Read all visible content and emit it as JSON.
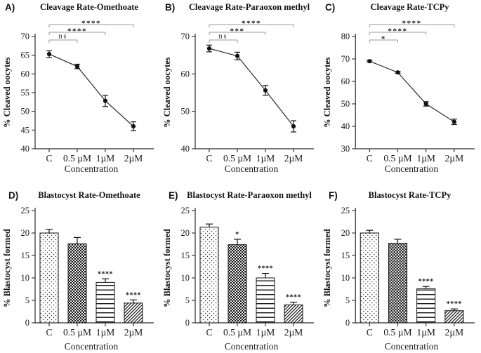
{
  "figure": {
    "background": "#ffffff",
    "axis_color": "#2b2b2b",
    "text_color": "#1a1a1a",
    "bracket_color": "#9a9a9a",
    "marker_color": "#111111"
  },
  "charts": [
    {
      "letter": "A)",
      "title": "Cleavage Rate-Omethoate",
      "type": "line",
      "ylabel": "% Cleaved oocytes",
      "xlabel": "Concentration",
      "categories": [
        "C",
        "0.5 µM",
        "1µM",
        "2µM"
      ],
      "values": [
        65.3,
        62.0,
        52.8,
        46.0
      ],
      "errors": [
        0.9,
        0.6,
        1.5,
        1.2
      ],
      "ylim": [
        40,
        70
      ],
      "yticks": [
        40,
        45,
        50,
        55,
        60,
        65,
        70
      ],
      "comparisons": [
        {
          "from": 0,
          "to": 1,
          "label": "ns"
        },
        {
          "from": 0,
          "to": 2,
          "label": "****"
        },
        {
          "from": 0,
          "to": 3,
          "label": "****"
        }
      ]
    },
    {
      "letter": "B)",
      "title": "Cleavage Rate-Paraoxon methyl",
      "type": "line",
      "ylabel": "% Cleaved oocytes",
      "xlabel": "Concentration",
      "categories": [
        "C",
        "0.5 µM",
        "1µM",
        "2µM"
      ],
      "values": [
        66.8,
        64.8,
        55.6,
        46.0
      ],
      "errors": [
        0.9,
        1.0,
        1.3,
        1.5
      ],
      "ylim": [
        40,
        70
      ],
      "yticks": [
        40,
        50,
        60,
        70
      ],
      "comparisons": [
        {
          "from": 0,
          "to": 1,
          "label": "ns"
        },
        {
          "from": 0,
          "to": 2,
          "label": "***"
        },
        {
          "from": 0,
          "to": 3,
          "label": "****"
        }
      ]
    },
    {
      "letter": "C)",
      "title": "Cleavage Rate-TCPy",
      "type": "line",
      "ylabel": "% Cleaved oocytes",
      "xlabel": "Concentration",
      "categories": [
        "C",
        "0.5 µM",
        "1µM",
        "2µM"
      ],
      "values": [
        69.0,
        64.0,
        50.0,
        42.0
      ],
      "errors": [
        0.4,
        0.4,
        1.0,
        1.2
      ],
      "ylim": [
        30,
        80
      ],
      "yticks": [
        30,
        40,
        50,
        60,
        70,
        80
      ],
      "comparisons": [
        {
          "from": 0,
          "to": 1,
          "label": "*"
        },
        {
          "from": 0,
          "to": 2,
          "label": "****"
        },
        {
          "from": 0,
          "to": 3,
          "label": "****"
        }
      ]
    },
    {
      "letter": "D)",
      "title": "Blastocyst Rate-Omethoate",
      "type": "bar",
      "ylabel": "% Blastocyst formed",
      "xlabel": "Concentration",
      "categories": [
        "C",
        "0.5 µM",
        "1µM",
        "2µM"
      ],
      "values": [
        20.0,
        17.6,
        9.0,
        4.4
      ],
      "errors": [
        0.8,
        1.4,
        0.8,
        0.7
      ],
      "ylim": [
        0,
        25
      ],
      "yticks": [
        0,
        5,
        10,
        15,
        20,
        25
      ],
      "patterns": [
        "dots-sparse",
        "dots-dense",
        "horizontal-lines",
        "diagonal-lines"
      ],
      "annotations": [
        {
          "index": 2,
          "label": "****"
        },
        {
          "index": 3,
          "label": "****"
        }
      ]
    },
    {
      "letter": "E)",
      "title": "Blastocyst Rate-Paraoxon methyl",
      "type": "bar",
      "ylabel": "% Blastocyst formed",
      "xlabel": "Concentration",
      "categories": [
        "C",
        "0.5 µM",
        "1µM",
        "2µM"
      ],
      "values": [
        21.3,
        17.4,
        10.0,
        4.0
      ],
      "errors": [
        0.7,
        1.2,
        1.0,
        0.6
      ],
      "ylim": [
        0,
        25
      ],
      "yticks": [
        0,
        5,
        10,
        15,
        20,
        25
      ],
      "patterns": [
        "dots-sparse",
        "dots-dense",
        "horizontal-lines",
        "diagonal-lines"
      ],
      "annotations": [
        {
          "index": 1,
          "label": "*"
        },
        {
          "index": 2,
          "label": "****"
        },
        {
          "index": 3,
          "label": "****"
        }
      ]
    },
    {
      "letter": "F)",
      "title": "Blastocyst Rate-TCPy",
      "type": "bar",
      "ylabel": "% Blastocyst formed",
      "xlabel": "Concentration",
      "categories": [
        "C",
        "0.5 µM",
        "1µM",
        "2µM"
      ],
      "values": [
        20.0,
        17.7,
        7.6,
        2.7
      ],
      "errors": [
        0.6,
        0.9,
        0.5,
        0.4
      ],
      "ylim": [
        0,
        25
      ],
      "yticks": [
        0,
        5,
        10,
        15,
        20,
        25
      ],
      "patterns": [
        "dots-sparse",
        "dots-dense",
        "horizontal-lines",
        "diagonal-lines"
      ],
      "annotations": [
        {
          "index": 2,
          "label": "****"
        },
        {
          "index": 3,
          "label": "****"
        }
      ]
    }
  ],
  "chart_data": [
    {
      "type": "line",
      "title": "Cleavage Rate-Omethoate",
      "categories": [
        "C",
        "0.5 µM",
        "1µM",
        "2µM"
      ],
      "values": [
        65.3,
        62.0,
        52.8,
        46.0
      ],
      "errors": [
        0.9,
        0.6,
        1.5,
        1.2
      ],
      "xlabel": "Concentration",
      "ylabel": "% Cleaved oocytes",
      "ylim": [
        40,
        70
      ],
      "significance": [
        "C vs 0.5 µM: ns",
        "C vs 1µM: ****",
        "C vs 2µM: ****"
      ]
    },
    {
      "type": "line",
      "title": "Cleavage Rate-Paraoxon methyl",
      "categories": [
        "C",
        "0.5 µM",
        "1µM",
        "2µM"
      ],
      "values": [
        66.8,
        64.8,
        55.6,
        46.0
      ],
      "errors": [
        0.9,
        1.0,
        1.3,
        1.5
      ],
      "xlabel": "Concentration",
      "ylabel": "% Cleaved oocytes",
      "ylim": [
        40,
        70
      ],
      "significance": [
        "C vs 0.5 µM: ns",
        "C vs 1µM: ***",
        "C vs 2µM: ****"
      ]
    },
    {
      "type": "line",
      "title": "Cleavage Rate-TCPy",
      "categories": [
        "C",
        "0.5 µM",
        "1µM",
        "2µM"
      ],
      "values": [
        69.0,
        64.0,
        50.0,
        42.0
      ],
      "errors": [
        0.4,
        0.4,
        1.0,
        1.2
      ],
      "xlabel": "Concentration",
      "ylabel": "% Cleaved oocytes",
      "ylim": [
        30,
        80
      ],
      "significance": [
        "C vs 0.5 µM: *",
        "C vs 1µM: ****",
        "C vs 2µM: ****"
      ]
    },
    {
      "type": "bar",
      "title": "Blastocyst Rate-Omethoate",
      "categories": [
        "C",
        "0.5 µM",
        "1µM",
        "2µM"
      ],
      "values": [
        20.0,
        17.6,
        9.0,
        4.4
      ],
      "errors": [
        0.8,
        1.4,
        0.8,
        0.7
      ],
      "xlabel": "Concentration",
      "ylabel": "% Blastocyst formed",
      "ylim": [
        0,
        25
      ],
      "significance": [
        "1µM: ****",
        "2µM: ****"
      ]
    },
    {
      "type": "bar",
      "title": "Blastocyst Rate-Paraoxon methyl",
      "categories": [
        "C",
        "0.5 µM",
        "1µM",
        "2µM"
      ],
      "values": [
        21.3,
        17.4,
        10.0,
        4.0
      ],
      "errors": [
        0.7,
        1.2,
        1.0,
        0.6
      ],
      "xlabel": "Concentration",
      "ylabel": "% Blastocyst formed",
      "ylim": [
        0,
        25
      ],
      "significance": [
        "0.5 µM: *",
        "1µM: ****",
        "2µM: ****"
      ]
    },
    {
      "type": "bar",
      "title": "Blastocyst Rate-TCPy",
      "categories": [
        "C",
        "0.5 µM",
        "1µM",
        "2µM"
      ],
      "values": [
        20.0,
        17.7,
        7.6,
        2.7
      ],
      "errors": [
        0.6,
        0.9,
        0.5,
        0.4
      ],
      "xlabel": "Concentration",
      "ylabel": "% Blastocyst formed",
      "ylim": [
        0,
        25
      ],
      "significance": [
        "1µM: ****",
        "2µM: ****"
      ]
    }
  ]
}
